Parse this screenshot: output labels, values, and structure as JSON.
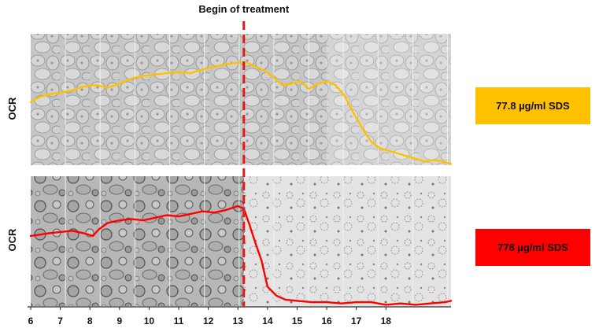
{
  "chart_data": {
    "type": "line",
    "title": "",
    "annotation": "Begin of treatment",
    "treatment_x": 13.2,
    "x_ticks": [
      "6",
      "7",
      "8",
      "9",
      "10",
      "11",
      "12",
      "13",
      "14",
      "15",
      "16",
      "17",
      "18"
    ],
    "x_tick_values": [
      6,
      7,
      8,
      9,
      10,
      11,
      12,
      13,
      14,
      15,
      16,
      17,
      18
    ],
    "xlim": [
      6,
      20.2
    ],
    "ylim": [
      0,
      100
    ],
    "panels": [
      {
        "ylabel": "OCR",
        "legend": "77.8 µg/ml SDS",
        "color": "#FFC000",
        "background": "bright",
        "series": {
          "x": [
            6,
            6.3,
            6.6,
            7,
            7.4,
            7.8,
            8.2,
            8.6,
            9,
            9.4,
            9.8,
            10.2,
            10.6,
            11,
            11.4,
            11.8,
            12.2,
            12.6,
            13,
            13.3,
            13.6,
            13.9,
            14.2,
            14.5,
            14.8,
            15.1,
            15.4,
            15.7,
            16,
            16.3,
            16.6,
            16.9,
            17.2,
            17.5,
            17.8,
            18.1,
            18.4,
            18.7,
            19,
            19.3,
            19.6,
            19.9,
            20.2
          ],
          "y": [
            48,
            52,
            54,
            55,
            57,
            60,
            61,
            59,
            62,
            66,
            68,
            69,
            70,
            71,
            70,
            73,
            75,
            77,
            78,
            78,
            75,
            72,
            67,
            61,
            62,
            64,
            58,
            62,
            64,
            61,
            53,
            40,
            28,
            18,
            13,
            11,
            9,
            7,
            5,
            3,
            4,
            3,
            1
          ]
        }
      },
      {
        "ylabel": "OCR",
        "legend": "778 µg/ml  SDS",
        "color": "#FF0000",
        "background": "dark",
        "series": {
          "x": [
            6,
            6.3,
            6.6,
            7,
            7.4,
            7.8,
            8.1,
            8.3,
            8.6,
            9,
            9.4,
            9.8,
            10.2,
            10.6,
            11,
            11.4,
            11.8,
            12.2,
            12.6,
            13,
            13.2,
            13.4,
            13.6,
            13.8,
            14,
            14.3,
            14.6,
            15,
            15.5,
            16,
            16.5,
            17,
            17.5,
            18,
            18.5,
            19,
            19.5,
            20,
            20.2
          ],
          "y": [
            54,
            55,
            56,
            57,
            58,
            56,
            54,
            59,
            64,
            66,
            67,
            66,
            68,
            70,
            69,
            71,
            73,
            72,
            74,
            77,
            75,
            62,
            48,
            35,
            15,
            8,
            5,
            4,
            3,
            3,
            2,
            3,
            3,
            1,
            2,
            1,
            2,
            3,
            4
          ]
        }
      }
    ]
  }
}
